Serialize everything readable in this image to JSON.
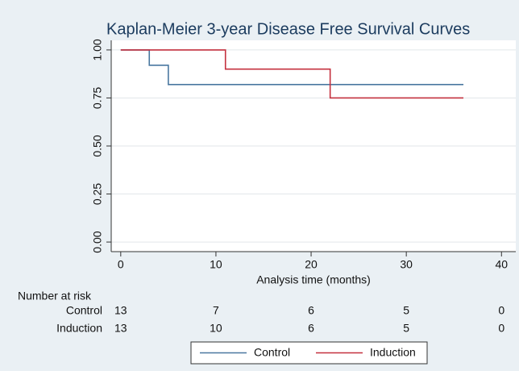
{
  "chart_data": {
    "type": "step",
    "title": "Kaplan-Meier 3-year Disease Free Survival Curves",
    "x_label": "Analysis time (months)",
    "xlim": [
      -1,
      41.5
    ],
    "ylim": [
      -0.05,
      1.05
    ],
    "xticks": [
      0,
      10,
      20,
      30,
      40
    ],
    "yticks": [
      {
        "value": 0,
        "label": "0.00"
      },
      {
        "value": 0.25,
        "label": "0.25"
      },
      {
        "value": 0.5,
        "label": "0.50"
      },
      {
        "value": 0.75,
        "label": "0.75"
      },
      {
        "value": 1,
        "label": "1.00"
      }
    ],
    "grid": true,
    "series": [
      {
        "name": "Control",
        "color": "#4a78a0",
        "x": [
          0,
          3,
          5,
          36
        ],
        "values": [
          1,
          0.92,
          0.82,
          0.82
        ]
      },
      {
        "name": "Induction",
        "color": "#c4313f",
        "x": [
          0,
          11,
          22,
          36
        ],
        "values": [
          1,
          0.9,
          0.75,
          0.75
        ]
      }
    ],
    "risk_table": {
      "title": "Number at risk",
      "times": [
        0,
        10,
        20,
        30,
        40
      ],
      "rows": [
        {
          "name": "Control",
          "values": [
            13,
            7,
            6,
            5,
            0
          ]
        },
        {
          "name": "Induction",
          "values": [
            13,
            10,
            6,
            5,
            0
          ]
        }
      ]
    },
    "legend": "bottom"
  }
}
